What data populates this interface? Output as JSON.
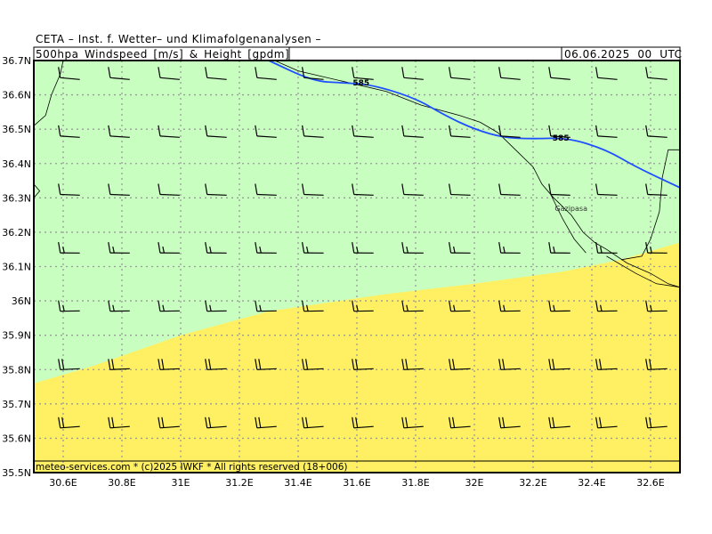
{
  "header": {
    "title": "CETA – Inst. f. Wetter– und Klimafolgenanalysen –",
    "subtitle": "500hpa_Windspeed_[m/s]_&_Height_[gpdm]",
    "datetime": "06.06.2025  00  UTC"
  },
  "footer": "meteo-services.com * (c)2025 IWKF * All rights reserved (18+006)",
  "map_data": {
    "lon_range": [
      30.5,
      32.7
    ],
    "lat_range": [
      35.5,
      36.7
    ],
    "lon_ticks": [
      "30.6E",
      "30.8E",
      "31E",
      "31.2E",
      "31.4E",
      "31.6E",
      "31.8E",
      "32E",
      "32.2E",
      "32.4E",
      "32.6E"
    ],
    "lat_ticks": [
      "36.7N",
      "36.6N",
      "36.5N",
      "36.4N",
      "36.3N",
      "36.2N",
      "36.1N",
      "36N",
      "35.9N",
      "35.8N",
      "35.7N",
      "35.6N",
      "35.5N"
    ],
    "places": [
      {
        "name": "Gazipasa",
        "lon": 32.28,
        "lat": 36.27
      }
    ],
    "contours": [
      {
        "label": "585",
        "points": [
          [
            31.3,
            36.7
          ],
          [
            31.45,
            36.64
          ],
          [
            31.55,
            36.635
          ],
          [
            31.65,
            36.63
          ],
          [
            31.8,
            36.59
          ],
          [
            31.9,
            36.54
          ],
          [
            32.0,
            36.5
          ],
          [
            32.1,
            36.475
          ],
          [
            32.2,
            36.472
          ],
          [
            32.32,
            36.475
          ],
          [
            32.45,
            36.44
          ],
          [
            32.55,
            36.39
          ],
          [
            32.7,
            36.33
          ]
        ],
        "label_positions": [
          [
            31.58,
            36.635
          ],
          [
            32.26,
            36.474
          ]
        ]
      }
    ],
    "colors": {
      "ocean_green": "#c8ffc0",
      "warm_yellow": "#fff063",
      "contour": "#1f4fff",
      "grid": "#9a9a9a",
      "coast": "#000000"
    },
    "wind_barbs": [
      {
        "lat": 36.65,
        "speed_class": "10"
      },
      {
        "lat": 36.48,
        "speed_class": "10"
      },
      {
        "lat": 36.31,
        "speed_class": "10"
      },
      {
        "lat": 36.14,
        "speed_class": "15"
      },
      {
        "lat": 35.97,
        "speed_class": "15"
      },
      {
        "lat": 35.8,
        "speed_class": "20"
      },
      {
        "lat": 35.63,
        "speed_class": "20"
      }
    ]
  }
}
